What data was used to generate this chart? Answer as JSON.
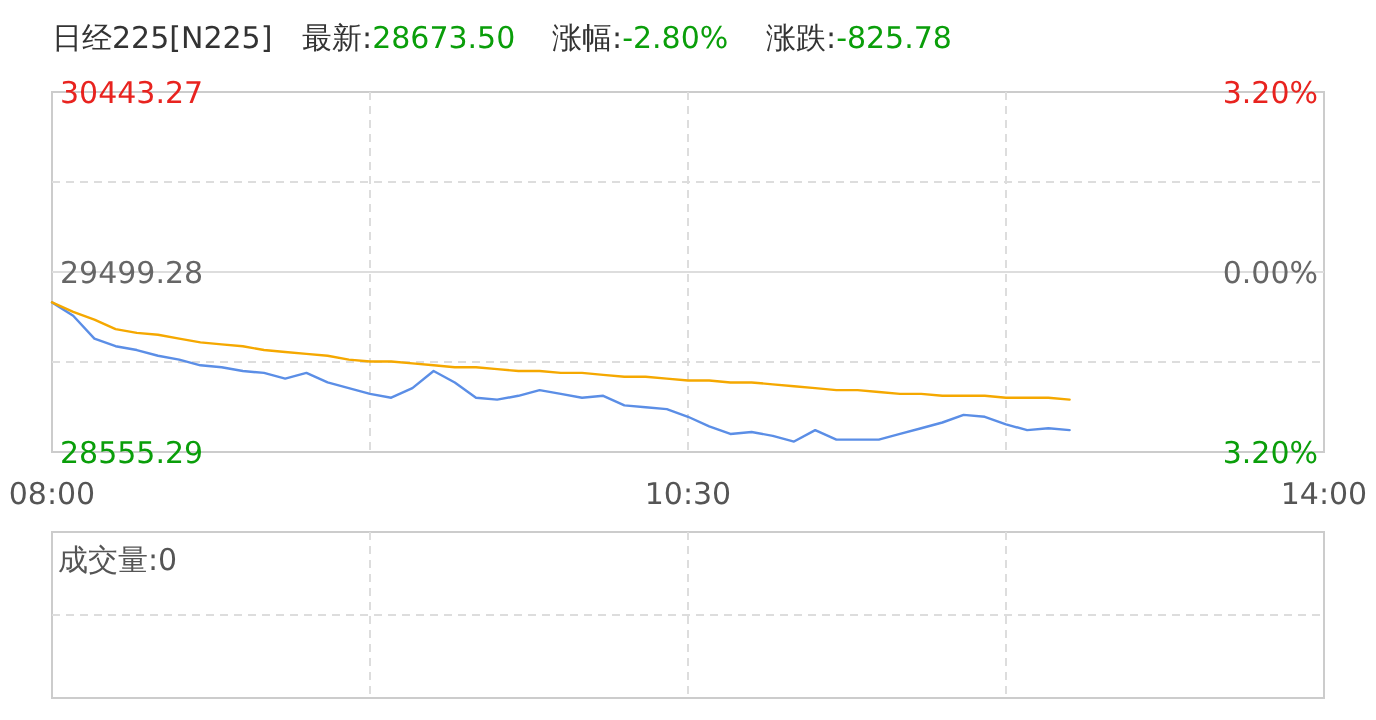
{
  "chart_data": {
    "type": "line",
    "title": "日经225[N225]",
    "annotations": [
      "最新:28673.50",
      "涨幅:-2.80%",
      "涨跌:-825.78",
      "成交量:0"
    ],
    "grid": true,
    "categories": [
      "08:00",
      null,
      null,
      null,
      null,
      null,
      null,
      null,
      null,
      null,
      null,
      null,
      null,
      null,
      null,
      null,
      null,
      null,
      null,
      null,
      null,
      null,
      null,
      null,
      null,
      null,
      null,
      null,
      null,
      null,
      "10:30",
      null,
      null,
      null,
      null,
      null,
      null,
      null,
      null,
      null,
      null,
      null,
      null,
      null,
      null,
      null,
      null,
      null,
      null,
      null,
      null,
      null,
      null,
      null,
      null,
      null,
      null,
      null,
      null,
      null,
      "14:00"
    ],
    "ylim": [
      28555.29,
      30443.27
    ],
    "yticks": [
      28555.29,
      29499.28,
      30443.27
    ],
    "y2lim": [
      -3.2,
      3.2
    ],
    "y2ticks": [
      {
        "value": -3.2,
        "label": "3.20%"
      },
      {
        "value": 0,
        "label": "0.00%"
      },
      {
        "value": 3.2,
        "label": "3.20%"
      }
    ],
    "series": [
      {
        "color": "#5b8ee6",
        "values": [
          29340,
          29270,
          29150,
          29110,
          29090,
          29060,
          29040,
          29010,
          29000,
          28980,
          28970,
          28940,
          28970,
          28920,
          28890,
          28860,
          28840,
          28890,
          28980,
          28920,
          28840,
          28830,
          28850,
          28880,
          28860,
          28840,
          28850,
          28800,
          28790,
          28780,
          28740,
          28690,
          28650,
          28660,
          28640,
          28610,
          28670,
          28620,
          28620,
          28620,
          28650,
          28680,
          28710,
          28750,
          28740,
          28700,
          28670,
          28680,
          28670,
          null,
          null,
          null,
          null,
          null,
          null,
          null,
          null,
          null,
          null,
          null,
          null
        ]
      },
      {
        "color": "#f5a800",
        "values": [
          29340,
          29290,
          29250,
          29200,
          29180,
          29170,
          29150,
          29130,
          29120,
          29110,
          29090,
          29080,
          29070,
          29060,
          29040,
          29030,
          29030,
          29020,
          29010,
          29000,
          29000,
          28990,
          28980,
          28980,
          28970,
          28970,
          28960,
          28950,
          28950,
          28940,
          28930,
          28930,
          28920,
          28920,
          28910,
          28900,
          28890,
          28880,
          28880,
          28870,
          28860,
          28860,
          28850,
          28850,
          28850,
          28840,
          28840,
          28840,
          28830,
          null,
          null,
          null,
          null,
          null,
          null,
          null,
          null,
          null,
          null,
          null,
          null
        ]
      }
    ]
  }
}
